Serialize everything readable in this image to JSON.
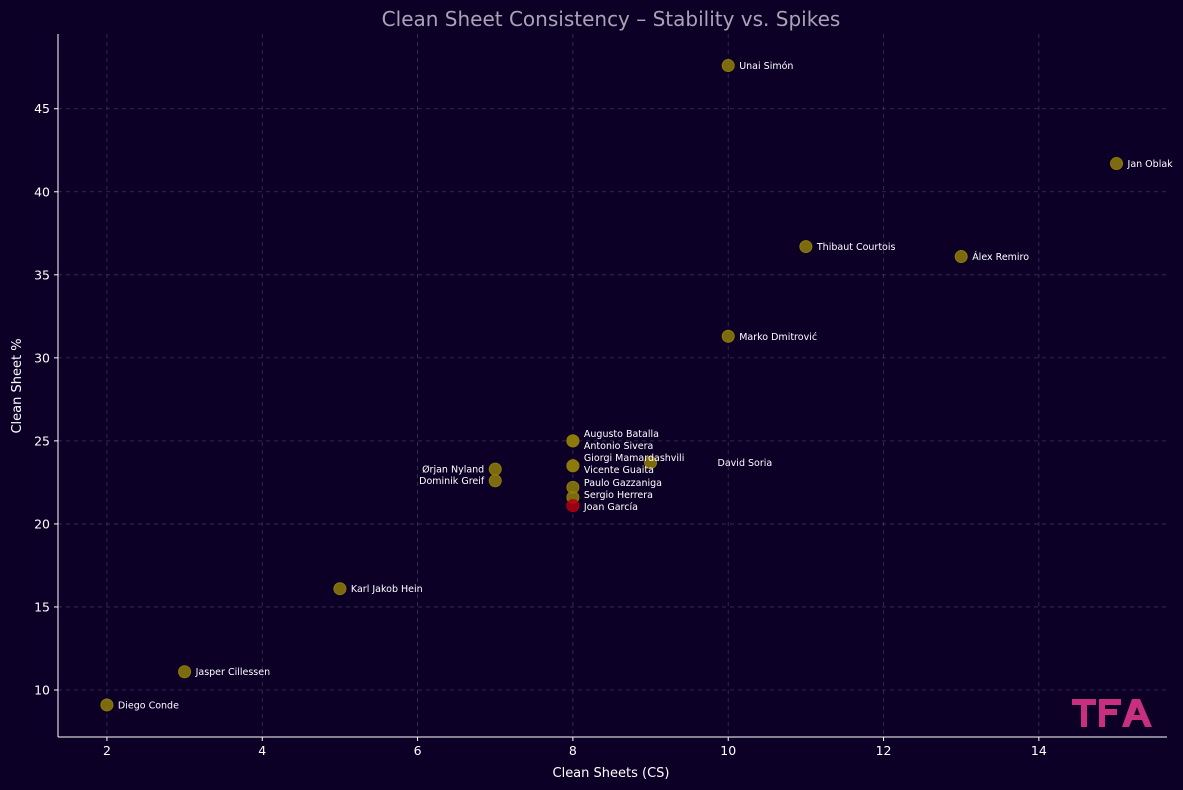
{
  "chart_data": {
    "type": "scatter",
    "title": "Clean Sheet Consistency – Stability vs. Spikes",
    "xlabel": "Clean Sheets (CS)",
    "ylabel": "Clean Sheet %",
    "xlim": [
      1.37,
      15.65
    ],
    "ylim": [
      7.17,
      49.5
    ],
    "xticks": [
      2,
      4,
      6,
      8,
      10,
      12,
      14
    ],
    "yticks": [
      10,
      15,
      20,
      25,
      30,
      35,
      40,
      45
    ],
    "grid": true,
    "points": [
      {
        "label": "Unai Simón",
        "x": 10,
        "y": 47.6,
        "highlight": false
      },
      {
        "label": "Jan Oblak",
        "x": 15,
        "y": 41.7,
        "highlight": false
      },
      {
        "label": "Thibaut Courtois",
        "x": 11,
        "y": 36.7,
        "highlight": false
      },
      {
        "label": "Álex Remiro",
        "x": 13,
        "y": 36.1,
        "highlight": false
      },
      {
        "label": "Marko Dmitrović",
        "x": 10,
        "y": 31.3,
        "highlight": false
      },
      {
        "label": "Augusto Batalla",
        "x": 8,
        "y": 25.0,
        "highlight": false
      },
      {
        "label": "Antonio Sivera",
        "x": 8,
        "y": 25.0,
        "highlight": false
      },
      {
        "label": "Giorgi Mamardashvili",
        "x": 8,
        "y": 23.5,
        "highlight": false
      },
      {
        "label": "Vicente Guaita",
        "x": 8,
        "y": 23.5,
        "highlight": false
      },
      {
        "label": "David Soria",
        "x": 9,
        "y": 23.7,
        "highlight": false
      },
      {
        "label": "Ørjan Nyland",
        "x": 7,
        "y": 23.3,
        "highlight": false
      },
      {
        "label": "Dominik Greif",
        "x": 7,
        "y": 22.6,
        "highlight": false
      },
      {
        "label": "Paulo Gazzaniga",
        "x": 8,
        "y": 22.2,
        "highlight": false
      },
      {
        "label": "Sergio Herrera",
        "x": 8,
        "y": 21.6,
        "highlight": false
      },
      {
        "label": "Joan García",
        "x": 8,
        "y": 21.1,
        "highlight": true
      },
      {
        "label": "Karl Jakob Hein",
        "x": 5,
        "y": 16.1,
        "highlight": false
      },
      {
        "label": "Jasper Cillessen",
        "x": 3,
        "y": 11.1,
        "highlight": false
      },
      {
        "label": "Diego Conde",
        "x": 2,
        "y": 9.1,
        "highlight": false
      }
    ],
    "colors": {
      "point": "#8f7d0a",
      "highlight": "#b00010",
      "background": "#0c0027",
      "grid": "#3a3358"
    }
  },
  "logo": {
    "text": "TFA",
    "color": "#c8307f"
  }
}
